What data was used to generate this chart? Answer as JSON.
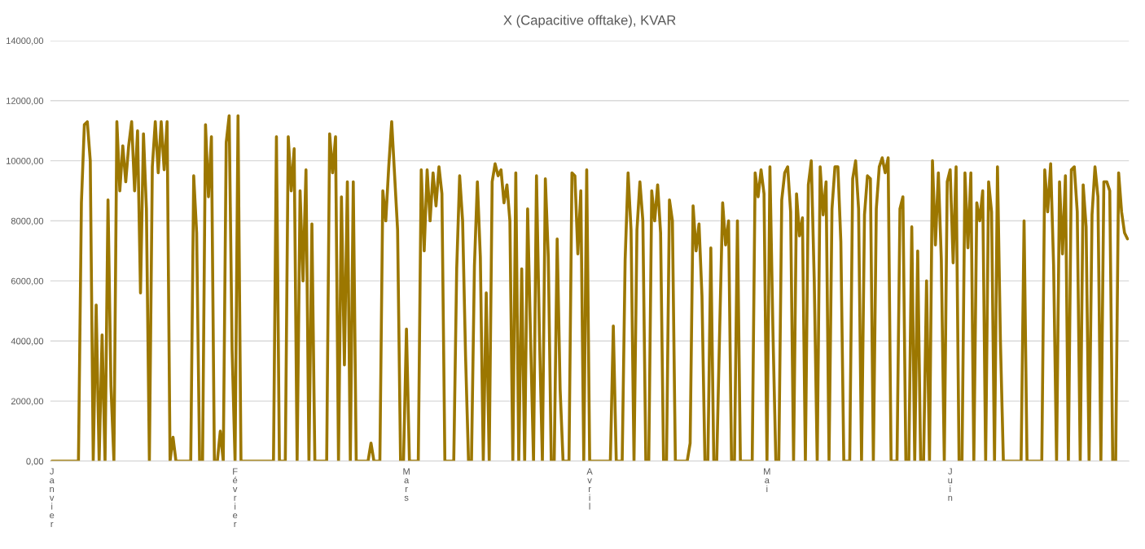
{
  "chart_data": {
    "type": "line",
    "title": "X (Capacitive offtake), KVAR",
    "categories": [
      "Janvier",
      null,
      null,
      null,
      null,
      null,
      null,
      null,
      null,
      null,
      null,
      null,
      null,
      null,
      null,
      null,
      null,
      null,
      null,
      null,
      null,
      null,
      null,
      null,
      null,
      null,
      null,
      null,
      null,
      null,
      null,
      null,
      null,
      null,
      null,
      null,
      null,
      null,
      null,
      null,
      null,
      null,
      null,
      null,
      null,
      null,
      null,
      null,
      null,
      null,
      null,
      null,
      null,
      null,
      null,
      null,
      null,
      null,
      null,
      null,
      null,
      null,
      "Février",
      null,
      null,
      null,
      null,
      null,
      null,
      null,
      null,
      null,
      null,
      null,
      null,
      null,
      null,
      null,
      null,
      null,
      null,
      null,
      null,
      null,
      null,
      null,
      null,
      null,
      null,
      null,
      null,
      null,
      null,
      null,
      null,
      null,
      null,
      null,
      null,
      null,
      null,
      null,
      null,
      null,
      null,
      null,
      null,
      null,
      null,
      null,
      null,
      null,
      null,
      null,
      null,
      null,
      null,
      null,
      null,
      null,
      "Mars",
      null,
      null,
      null,
      null,
      null,
      null,
      null,
      null,
      null,
      null,
      null,
      null,
      null,
      null,
      null,
      null,
      null,
      null,
      null,
      null,
      null,
      null,
      null,
      null,
      null,
      null,
      null,
      null,
      null,
      null,
      null,
      null,
      null,
      null,
      null,
      null,
      null,
      null,
      null,
      null,
      null,
      null,
      null,
      null,
      null,
      null,
      null,
      null,
      null,
      null,
      null,
      null,
      null,
      null,
      null,
      null,
      null,
      null,
      null,
      null,
      null,
      "Avril",
      null,
      null,
      null,
      null,
      null,
      null,
      null,
      null,
      null,
      null,
      null,
      null,
      null,
      null,
      null,
      null,
      null,
      null,
      null,
      null,
      null,
      null,
      null,
      null,
      null,
      null,
      null,
      null,
      null,
      null,
      null,
      null,
      null,
      null,
      null,
      null,
      null,
      null,
      null,
      null,
      null,
      null,
      null,
      null,
      null,
      null,
      null,
      null,
      null,
      null,
      null,
      null,
      null,
      null,
      null,
      null,
      null,
      null,
      null,
      "Mai",
      null,
      null,
      null,
      null,
      null,
      null,
      null,
      null,
      null,
      null,
      null,
      null,
      null,
      null,
      null,
      null,
      null,
      null,
      null,
      null,
      null,
      null,
      null,
      null,
      null,
      null,
      null,
      null,
      null,
      null,
      null,
      null,
      null,
      null,
      null,
      null,
      null,
      null,
      null,
      null,
      null,
      null,
      null,
      null,
      null,
      null,
      null,
      null,
      null,
      null,
      null,
      null,
      null,
      null,
      null,
      null,
      null,
      null,
      null,
      null,
      null,
      "Juin",
      null,
      null,
      null,
      null,
      null,
      null,
      null,
      null,
      null,
      null,
      null,
      null,
      null,
      null,
      null,
      null,
      null,
      null,
      null,
      null,
      null,
      null,
      null,
      null,
      null,
      null,
      null,
      null,
      null,
      null,
      null,
      null,
      null,
      null,
      null,
      null,
      null,
      null,
      null,
      null,
      null,
      null,
      null,
      null,
      null,
      null,
      null,
      null,
      null,
      null,
      null,
      null,
      null,
      null,
      null,
      null,
      null,
      null,
      null,
      null
    ],
    "series": [
      {
        "color": "#9c7700",
        "values": [
          0,
          0,
          0,
          0,
          0,
          0,
          0,
          0,
          0,
          0,
          8600,
          11200,
          11300,
          10000,
          0,
          5200,
          0,
          4200,
          0,
          8700,
          2500,
          0,
          11300,
          9000,
          10500,
          9300,
          10500,
          11300,
          9000,
          11000,
          5600,
          10900,
          8400,
          0,
          9800,
          11300,
          9600,
          11300,
          9700,
          11300,
          0,
          800,
          0,
          0,
          0,
          0,
          0,
          0,
          9500,
          7600,
          0,
          0,
          11200,
          8800,
          10800,
          0,
          0,
          1000,
          0,
          10600,
          11500,
          3700,
          0,
          11500,
          0,
          0,
          0,
          0,
          0,
          0,
          0,
          0,
          0,
          0,
          0,
          0,
          10800,
          0,
          0,
          0,
          10800,
          9000,
          10400,
          0,
          9000,
          6000,
          9700,
          0,
          7900,
          0,
          0,
          0,
          0,
          0,
          10900,
          9600,
          10800,
          0,
          8800,
          3200,
          9300,
          0,
          9300,
          0,
          0,
          0,
          0,
          0,
          600,
          0,
          0,
          0,
          9000,
          8000,
          9800,
          11300,
          9500,
          7700,
          0,
          0,
          4400,
          0,
          0,
          0,
          0,
          9700,
          7000,
          9700,
          8000,
          9600,
          8500,
          9800,
          8900,
          0,
          0,
          0,
          0,
          6400,
          9500,
          8000,
          3500,
          0,
          0,
          6500,
          9300,
          6800,
          0,
          5600,
          0,
          9300,
          9900,
          9500,
          9700,
          8600,
          9200,
          8000,
          0,
          9600,
          0,
          6400,
          0,
          8400,
          4100,
          0,
          9500,
          4200,
          0,
          9400,
          6800,
          0,
          0,
          7400,
          2400,
          0,
          0,
          0,
          9600,
          9500,
          6900,
          9000,
          0,
          9700,
          0,
          0,
          0,
          0,
          0,
          0,
          0,
          0,
          4500,
          0,
          0,
          0,
          6700,
          9600,
          7700,
          0,
          7700,
          9300,
          8000,
          0,
          0,
          9000,
          8000,
          9200,
          7600,
          0,
          0,
          8700,
          8000,
          0,
          0,
          0,
          0,
          0,
          600,
          8500,
          7000,
          7900,
          5500,
          0,
          0,
          7100,
          0,
          0,
          4400,
          8600,
          7200,
          8000,
          0,
          0,
          8000,
          0,
          0,
          0,
          0,
          0,
          9600,
          8800,
          9700,
          8900,
          0,
          9800,
          4400,
          0,
          0,
          8700,
          9600,
          9800,
          8300,
          0,
          8900,
          7500,
          8100,
          0,
          9200,
          10000,
          6000,
          0,
          9800,
          8200,
          9300,
          0,
          8400,
          9800,
          9800,
          7300,
          0,
          0,
          0,
          9400,
          10000,
          8400,
          0,
          8200,
          9500,
          9400,
          0,
          8400,
          9800,
          10100,
          9600,
          10100,
          0,
          0,
          0,
          8400,
          8800,
          0,
          0,
          7800,
          0,
          7000,
          0,
          0,
          6000,
          0,
          10000,
          7200,
          9600,
          6700,
          0,
          9300,
          9700,
          6600,
          9800,
          0,
          0,
          9600,
          7100,
          9600,
          0,
          8600,
          8000,
          9000,
          0,
          9300,
          8300,
          0,
          9800,
          4000,
          0,
          0,
          0,
          0,
          0,
          0,
          0,
          8000,
          0,
          0,
          0,
          0,
          0,
          0,
          9700,
          8300,
          9900,
          6500,
          0,
          9300,
          6900,
          9500,
          0,
          9700,
          9800,
          8300,
          0,
          9200,
          7800,
          0,
          8200,
          9800,
          8800,
          0,
          9300,
          9300,
          9000,
          0,
          0,
          9600,
          8300,
          7600,
          7400
        ]
      }
    ],
    "ylim": [
      0,
      14000
    ],
    "yticks": [
      {
        "value": 0,
        "label": "0,00"
      },
      {
        "value": 2000,
        "label": "2000,00"
      },
      {
        "value": 4000,
        "label": "4000,00"
      },
      {
        "value": 6000,
        "label": "6000,00"
      },
      {
        "value": 8000,
        "label": "8000,00"
      },
      {
        "value": 10000,
        "label": "10000,00"
      },
      {
        "value": 12000,
        "label": "12000,00"
      },
      {
        "value": 14000,
        "label": "14000,00"
      }
    ],
    "grid": "y"
  }
}
